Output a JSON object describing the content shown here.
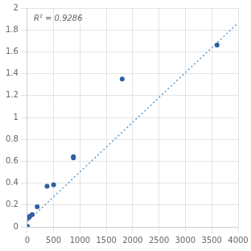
{
  "chart_data": {
    "type": "scatter",
    "series": [
      {
        "type": "line",
        "line_style": "dotted",
        "color": "#5B9BD5",
        "x": [
          0,
          4000
        ],
        "values": [
          0.048,
          1.864
        ]
      },
      {
        "type": "scatter",
        "marker": "circle",
        "color": "#2E5FA3",
        "x": [
          0,
          23,
          47,
          94,
          188,
          375,
          500,
          875,
          875,
          1800,
          3600
        ],
        "values": [
          0.005,
          0.082,
          0.098,
          0.112,
          0.183,
          0.372,
          0.384,
          0.631,
          0.641,
          1.352,
          1.661
        ]
      }
    ],
    "annotation": "R² = 0.9286",
    "xlim": [
      0,
      4000
    ],
    "ylim": [
      0,
      2.0
    ],
    "xticks": [
      0,
      500,
      1000,
      1500,
      2000,
      2500,
      3000,
      3500,
      4000
    ],
    "yticks": [
      0,
      0.2,
      0.4,
      0.6,
      0.8,
      1,
      1.2,
      1.4,
      1.6,
      1.8,
      2
    ],
    "grid": true
  }
}
